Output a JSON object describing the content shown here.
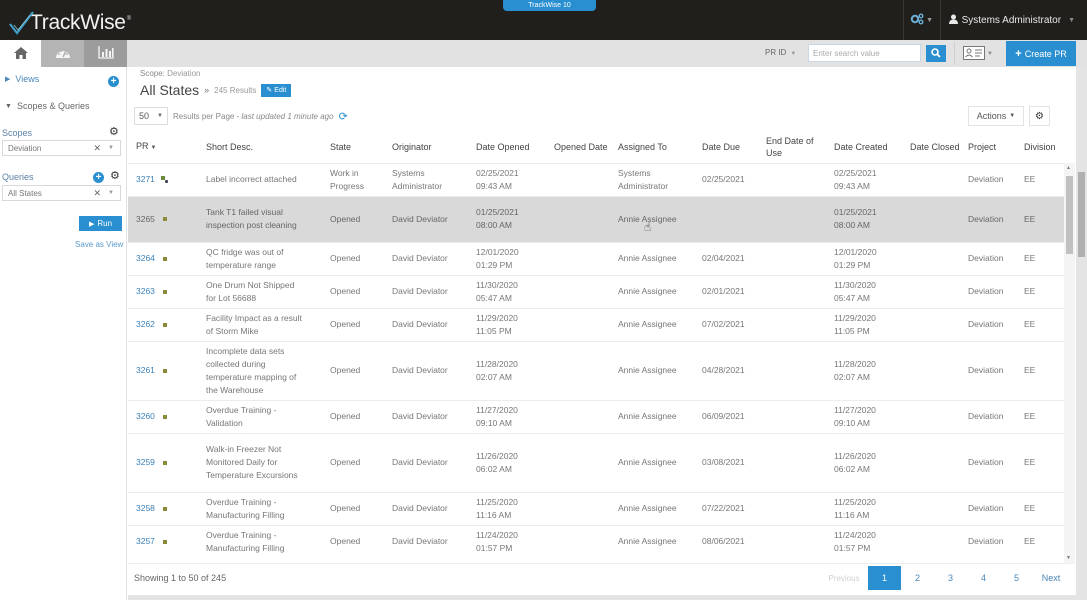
{
  "app": {
    "logo_text": "TrackWise",
    "logo_reg": "®",
    "product_badge": "TrackWise 10",
    "user_name": "Systems Administrator"
  },
  "icons": {
    "home": "home-icon",
    "dashboard": "speedometer-icon",
    "charts": "bar-chart-icon",
    "settings": "cogs-icon",
    "user": "user-icon",
    "search": "search-icon",
    "card": "id-card-icon",
    "plus": "plus-icon",
    "gear": "gear-icon",
    "refresh": "refresh-icon",
    "edit": "pencil-icon",
    "play": "play-icon"
  },
  "colors": {
    "accent": "#2a8fd0",
    "topbar": "#211f1c",
    "link": "#3a80b6",
    "highlight_row": "#d9d9d9"
  },
  "toolbar": {
    "search_field_label": "PR ID",
    "search_placeholder": "Enter search value",
    "create_label": "Create PR"
  },
  "sidebar": {
    "views_label": "Views",
    "scopes_queries_label": "Scopes & Queries",
    "scopes_label": "Scopes",
    "scope_value": "Deviation",
    "queries_label": "Queries",
    "query_value": "All States",
    "run_label": "Run",
    "save_view_label": "Save as View"
  },
  "main": {
    "scope_prefix": "Scope:",
    "scope_value": "Deviation",
    "title": "All States",
    "title_chevron": "»",
    "results_count": "245 Results",
    "edit_label": "Edit",
    "per_page_value": "50",
    "per_page_label": "Results per Page -",
    "last_updated": "last updated 1 minute ago",
    "actions_label": "Actions"
  },
  "table": {
    "columns": [
      {
        "key": "pr",
        "label": "PR"
      },
      {
        "key": "desc",
        "label": "Short Desc."
      },
      {
        "key": "state",
        "label": "State"
      },
      {
        "key": "originator",
        "label": "Originator"
      },
      {
        "key": "date_opened",
        "label": "Date Opened"
      },
      {
        "key": "opened_date",
        "label": "Opened Date"
      },
      {
        "key": "assigned_to",
        "label": "Assigned To"
      },
      {
        "key": "date_due",
        "label": "Date Due"
      },
      {
        "key": "end_date_use",
        "label": "End Date of Use"
      },
      {
        "key": "date_created",
        "label": "Date Created"
      },
      {
        "key": "date_closed",
        "label": "Date Closed"
      },
      {
        "key": "project",
        "label": "Project"
      },
      {
        "key": "division",
        "label": "Division"
      }
    ],
    "rows": [
      {
        "pr": "3271",
        "desc": "Label incorrect attached",
        "state": "Work in Progress",
        "originator": "Systems Administrator",
        "date_opened": "02/25/2021 09:43 AM",
        "opened_date": "",
        "assigned_to": "Systems Administrator",
        "date_due": "02/25/2021",
        "end_date_use": "",
        "date_created": "02/25/2021 09:43 AM",
        "date_closed": "",
        "project": "Deviation",
        "division": "EE"
      },
      {
        "pr": "3265",
        "desc": "Tank T1 failed visual inspection post cleaning",
        "state": "Opened",
        "originator": "David Deviator",
        "date_opened": "01/25/2021 08:00 AM",
        "opened_date": "",
        "assigned_to": "Annie Assignee",
        "date_due": "",
        "end_date_use": "",
        "date_created": "01/25/2021 08:00 AM",
        "date_closed": "",
        "project": "Deviation",
        "division": "EE"
      },
      {
        "pr": "3264",
        "desc": "QC fridge was out of temperature range",
        "state": "Opened",
        "originator": "David Deviator",
        "date_opened": "12/01/2020 01:29 PM",
        "opened_date": "",
        "assigned_to": "Annie Assignee",
        "date_due": "02/04/2021",
        "end_date_use": "",
        "date_created": "12/01/2020 01:29 PM",
        "date_closed": "",
        "project": "Deviation",
        "division": "EE"
      },
      {
        "pr": "3263",
        "desc": "One Drum Not Shipped for Lot 56688",
        "state": "Opened",
        "originator": "David Deviator",
        "date_opened": "11/30/2020 05:47 AM",
        "opened_date": "",
        "assigned_to": "Annie Assignee",
        "date_due": "02/01/2021",
        "end_date_use": "",
        "date_created": "11/30/2020 05:47 AM",
        "date_closed": "",
        "project": "Deviation",
        "division": "EE"
      },
      {
        "pr": "3262",
        "desc": "Facility Impact as a result of Storm Mike",
        "state": "Opened",
        "originator": "David Deviator",
        "date_opened": "11/29/2020 11:05 PM",
        "opened_date": "",
        "assigned_to": "Annie Assignee",
        "date_due": "07/02/2021",
        "end_date_use": "",
        "date_created": "11/29/2020 11:05 PM",
        "date_closed": "",
        "project": "Deviation",
        "division": "EE"
      },
      {
        "pr": "3261",
        "desc": "Incomplete data sets collected during temperature mapping of the Warehouse",
        "state": "Opened",
        "originator": "David Deviator",
        "date_opened": "11/28/2020 02:07 AM",
        "opened_date": "",
        "assigned_to": "Annie Assignee",
        "date_due": "04/28/2021",
        "end_date_use": "",
        "date_created": "11/28/2020 02:07 AM",
        "date_closed": "",
        "project": "Deviation",
        "division": "EE"
      },
      {
        "pr": "3260",
        "desc": "Overdue Training - Validation",
        "state": "Opened",
        "originator": "David Deviator",
        "date_opened": "11/27/2020 09:10 AM",
        "opened_date": "",
        "assigned_to": "Annie Assignee",
        "date_due": "06/09/2021",
        "end_date_use": "",
        "date_created": "11/27/2020 09:10 AM",
        "date_closed": "",
        "project": "Deviation",
        "division": "EE"
      },
      {
        "pr": "3259",
        "desc": "Walk-in Freezer Not Monitored Daily for Temperature Excursions",
        "state": "Opened",
        "originator": "David Deviator",
        "date_opened": "11/26/2020 06:02 AM",
        "opened_date": "",
        "assigned_to": "Annie Assignee",
        "date_due": "03/08/2021",
        "end_date_use": "",
        "date_created": "11/26/2020 06:02 AM",
        "date_closed": "",
        "project": "Deviation",
        "division": "EE"
      },
      {
        "pr": "3258",
        "desc": "Overdue Training - Manufacturing Filling",
        "state": "Opened",
        "originator": "David Deviator",
        "date_opened": "11/25/2020 11:16 AM",
        "opened_date": "",
        "assigned_to": "Annie Assignee",
        "date_due": "07/22/2021",
        "end_date_use": "",
        "date_created": "11/25/2020 11:16 AM",
        "date_closed": "",
        "project": "Deviation",
        "division": "EE"
      },
      {
        "pr": "3257",
        "desc": "Overdue Training - Manufacturing Filling",
        "state": "Opened",
        "originator": "David Deviator",
        "date_opened": "11/24/2020 01:57 PM",
        "opened_date": "",
        "assigned_to": "Annie Assignee",
        "date_due": "08/06/2021",
        "end_date_use": "",
        "date_created": "11/24/2020 01:57 PM",
        "date_closed": "",
        "project": "Deviation",
        "division": "EE"
      }
    ],
    "highlighted_row_index": 1
  },
  "footer": {
    "showing": "Showing 1 to 50 of 245",
    "pagination": {
      "previous": "Previous",
      "pages": [
        "1",
        "2",
        "3",
        "4",
        "5"
      ],
      "active_page": "1",
      "next": "Next"
    }
  }
}
